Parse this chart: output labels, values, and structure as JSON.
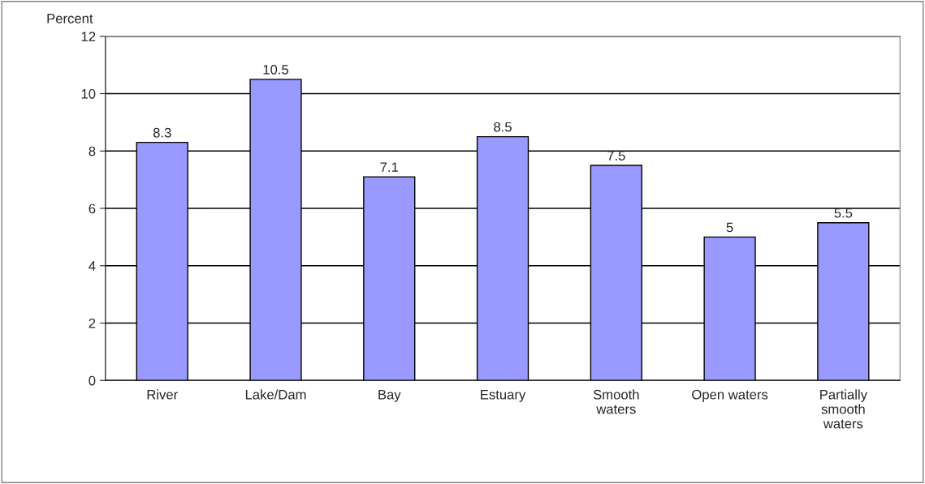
{
  "chart_data": {
    "type": "bar",
    "ylabel": "Percent",
    "categories": [
      "River",
      "Lake/Dam",
      "Bay",
      "Estuary",
      "Smooth\nwaters",
      "Open waters",
      "Partially\nsmooth\nwaters"
    ],
    "values": [
      8.3,
      10.5,
      7.1,
      8.5,
      7.5,
      5,
      5.5
    ],
    "color": "#9999ff",
    "ylim": [
      0,
      12
    ],
    "yticks": [
      0,
      2,
      4,
      6,
      8,
      10,
      12
    ],
    "grid": "y",
    "data_labels": true,
    "legend": false
  }
}
